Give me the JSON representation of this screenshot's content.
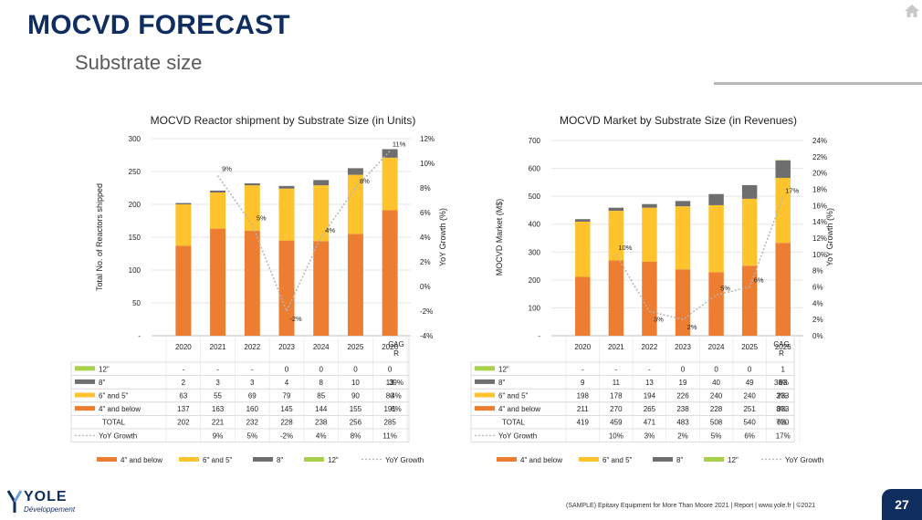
{
  "header": {
    "title": "MOCVD FORECAST",
    "subtitle": "Substrate size"
  },
  "footer": {
    "text": "(SAMPLE) Epitaxy Equipment for More Than Moore 2021 | Report | www.yole.fr | ©2021",
    "page_number": "27"
  },
  "logo": {
    "name": "YOLE",
    "tagline": "Développement"
  },
  "icons": {
    "home": "home-icon"
  },
  "colors": {
    "title": "#0f2d5f",
    "s4": "#ed7d31",
    "s6": "#ffc32e",
    "s8": "#6e6e6e",
    "s12": "#a8d04a",
    "yoy": "#b4b4b4"
  },
  "chart_data": [
    {
      "type": "bar",
      "stacked": true,
      "title": "MOCVD Reactor shipment by Substrate Size (in Units)",
      "ylabel": "Total No. of Reactors shipped",
      "y2label": "YoY Growth (%)",
      "categories": [
        "2020",
        "2021",
        "2022",
        "2023",
        "2024",
        "2025",
        "2026"
      ],
      "ylim": [
        0,
        300
      ],
      "yticks": [
        "-",
        "50",
        "100",
        "150",
        "200",
        "250",
        "300"
      ],
      "y2lim": [
        -4,
        12
      ],
      "y2ticks": [
        "-4%",
        "-2%",
        "0%",
        "2%",
        "4%",
        "6%",
        "8%",
        "10%",
        "12%"
      ],
      "cagr_header": "CAGR",
      "series": [
        {
          "name": "12\"",
          "values": [
            0,
            0,
            0,
            0,
            0,
            0,
            0
          ],
          "labels": [
            "-",
            "-",
            "-",
            "0",
            "0",
            "0",
            "0"
          ],
          "cagr": ""
        },
        {
          "name": "8\"",
          "values": [
            2,
            3,
            3,
            4,
            8,
            10,
            13
          ],
          "labels": [
            "2",
            "3",
            "3",
            "4",
            "8",
            "10",
            "13"
          ],
          "cagr": "39%"
        },
        {
          "name": "6\" and 5\"",
          "values": [
            63,
            55,
            69,
            79,
            85,
            90,
            80
          ],
          "labels": [
            "63",
            "55",
            "69",
            "79",
            "85",
            "90",
            "80"
          ],
          "cagr": "4%"
        },
        {
          "name": "4\" and below",
          "values": [
            137,
            163,
            160,
            145,
            144,
            155,
            191
          ],
          "labels": [
            "137",
            "163",
            "160",
            "145",
            "144",
            "155",
            "191"
          ],
          "cagr": "6%"
        }
      ],
      "total": {
        "name": "TOTAL",
        "labels": [
          "202",
          "221",
          "232",
          "228",
          "238",
          "256",
          "285"
        ],
        "cagr": ""
      },
      "yoy": {
        "name": "YoY Growth",
        "values": [
          null,
          9,
          5,
          -2,
          4,
          8,
          11
        ],
        "labels": [
          "",
          "9%",
          "5%",
          "-2%",
          "4%",
          "8%",
          "11%"
        ]
      },
      "legend": [
        "4\" and below",
        "6\" and 5\"",
        "8\"",
        "12\"",
        "YoY Growth"
      ],
      "legend_position": "bottom"
    },
    {
      "type": "bar",
      "stacked": true,
      "title": "MOCVD Market by Substrate Size (in Revenues)",
      "ylabel": "MOCVD Market (M$)",
      "y2label": "YoY Growth (%)",
      "categories": [
        "2020",
        "2021",
        "2022",
        "2023",
        "2024",
        "2025",
        "2026"
      ],
      "ylim": [
        0,
        700
      ],
      "yticks": [
        "-",
        "100",
        "200",
        "300",
        "400",
        "500",
        "600",
        "700"
      ],
      "y2lim": [
        0,
        24
      ],
      "y2ticks": [
        "0%",
        "2%",
        "4%",
        "6%",
        "8%",
        "10%",
        "12%",
        "14%",
        "16%",
        "18%",
        "20%",
        "22%",
        "24%"
      ],
      "cagr_header": "CAGR",
      "series": [
        {
          "name": "12\"",
          "values": [
            0,
            0,
            0,
            0,
            0,
            0,
            1
          ],
          "labels": [
            "-",
            "-",
            "-",
            "0",
            "0",
            "0",
            "1"
          ],
          "cagr": ""
        },
        {
          "name": "8\"",
          "values": [
            9,
            11,
            13,
            19,
            40,
            49,
            63
          ],
          "labels": [
            "9",
            "11",
            "13",
            "19",
            "40",
            "49",
            "63"
          ],
          "cagr": "38%"
        },
        {
          "name": "6\" and 5\"",
          "values": [
            198,
            178,
            194,
            226,
            240,
            240,
            233
          ],
          "labels": [
            "198",
            "178",
            "194",
            "226",
            "240",
            "240",
            "233"
          ],
          "cagr": "3%"
        },
        {
          "name": "4\" and below",
          "values": [
            211,
            270,
            265,
            238,
            228,
            251,
            333
          ],
          "labels": [
            "211",
            "270",
            "265",
            "238",
            "228",
            "251",
            "333"
          ],
          "cagr": "8%"
        }
      ],
      "total": {
        "name": "TOTAL",
        "labels": [
          "419",
          "459",
          "471",
          "483",
          "508",
          "540",
          "630"
        ],
        "cagr": "7%"
      },
      "yoy": {
        "name": "YoY Growth",
        "values": [
          null,
          10,
          3,
          2,
          5,
          6,
          17
        ],
        "labels": [
          "",
          "10%",
          "3%",
          "2%",
          "5%",
          "6%",
          "17%"
        ]
      },
      "legend": [
        "4\" and below",
        "6\" and 5\"",
        "8\"",
        "12\"",
        "YoY Growth"
      ],
      "legend_position": "bottom"
    }
  ]
}
